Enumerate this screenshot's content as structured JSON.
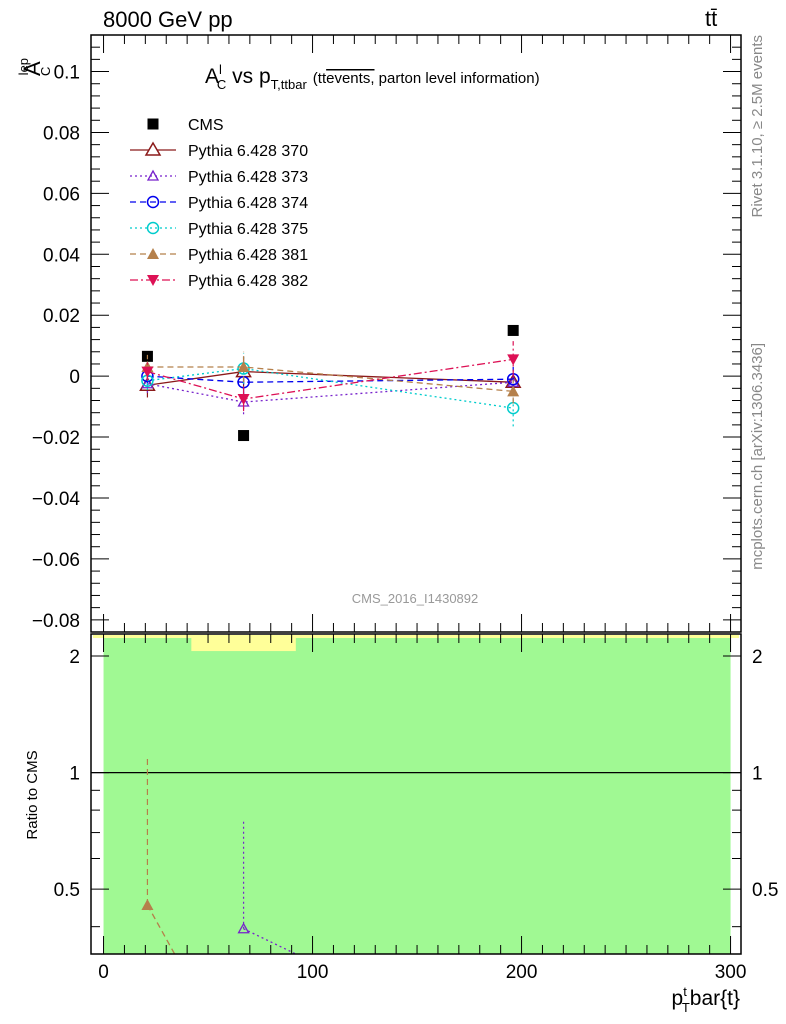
{
  "header": {
    "energy_label": "8000 GeV pp",
    "process_label": "tt̄"
  },
  "side_labels": {
    "rivet": "Rivet 3.1.10, ≥ 2.5M events",
    "mcplots": "mcplots.cern.ch [arXiv:1306.3436]"
  },
  "chart_data": [
    {
      "type": "scatter",
      "title_main": "A",
      "title_sup": "l",
      "title_sub": "C",
      "title_vs": " vs p",
      "title_vs_sub": "T,ttbar",
      "title_note_pre": "(tt",
      "title_note_over": "events,",
      "title_note_post": " parton level information)",
      "ylabel_main": "A",
      "ylabel_sup": "lep",
      "ylabel_sub": "C",
      "watermark": "CMS_2016_I1430892",
      "ylim": [
        -0.084,
        0.112
      ],
      "xlim": [
        -6,
        305
      ],
      "yticks": [
        -0.08,
        -0.06,
        -0.04,
        -0.02,
        0,
        0.02,
        0.04,
        0.06,
        0.08,
        0.1
      ],
      "ytick_labels": [
        "−0.08",
        "−0.06",
        "−0.04",
        "−0.02",
        "0",
        "0.02",
        "0.04",
        "0.06",
        "0.08",
        "0.1"
      ],
      "grid": false,
      "legend_position": "top-left",
      "x": [
        21,
        67,
        196
      ],
      "series": [
        {
          "name": "CMS",
          "color": "#000000",
          "marker": "square",
          "line": "none",
          "values": [
            0.0065,
            -0.0195,
            0.015
          ],
          "errors": [
            0,
            0,
            0
          ]
        },
        {
          "name": "Pythia 6.428 370",
          "color": "#8b1a1a",
          "marker": "triangle-open",
          "line": "solid",
          "values": [
            -0.003,
            0.0015,
            -0.002
          ],
          "errors": [
            0.004,
            0.005,
            0.003
          ]
        },
        {
          "name": "Pythia 6.428 373",
          "color": "#7722cc",
          "marker": "triangle-open-small",
          "line": "dotted",
          "values": [
            -0.0025,
            -0.0085,
            -0.002
          ],
          "errors": [
            0.003,
            0.004,
            0.003
          ]
        },
        {
          "name": "Pythia 6.428 374",
          "color": "#0000ee",
          "marker": "circle-open",
          "line": "dashed",
          "values": [
            0,
            -0.002,
            -0.001
          ],
          "errors": [
            0.003,
            0.004,
            0.004
          ]
        },
        {
          "name": "Pythia 6.428 375",
          "color": "#00cccc",
          "marker": "circle-open",
          "line": "dotted",
          "values": [
            -0.0015,
            0.0025,
            -0.0105
          ],
          "errors": [
            0.003,
            0.005,
            0.006
          ]
        },
        {
          "name": "Pythia 6.428 381",
          "color": "#b5804b",
          "marker": "triangle-filled",
          "line": "dashed",
          "values": [
            0.003,
            0.003,
            -0.005
          ],
          "errors": [
            0.004,
            0.005,
            0.004
          ]
        },
        {
          "name": "Pythia 6.428 382",
          "color": "#dd1155",
          "marker": "triangle-down-filled",
          "line": "dashdot",
          "values": [
            0.0015,
            -0.0075,
            0.0055
          ],
          "errors": [
            0.003,
            0.004,
            0.006
          ]
        }
      ]
    },
    {
      "type": "scatter",
      "ylabel": "Ratio to CMS",
      "xlabel_main": "p",
      "xlabel_sup": "t",
      "xlabel_sub": "T",
      "xlabel_rest": "bar{t}",
      "ylim": [
        0.34,
        2.28
      ],
      "xlim": [
        -6,
        305
      ],
      "yticks": [
        0.5,
        1,
        2
      ],
      "ytick_labels": [
        "0.5",
        "1",
        "2"
      ],
      "xticks": [
        0,
        100,
        200,
        300
      ],
      "xtick_labels": [
        "0",
        "100",
        "200",
        "300"
      ],
      "reference_line": 1,
      "bands": [
        {
          "color": "#a0f993",
          "x_from": 0,
          "x_to": 300,
          "y_from": 0.34,
          "y_to": 2.28
        },
        {
          "color": "#ffff99",
          "x_from": 42,
          "x_to": 92,
          "y_from": 2.06,
          "y_to": 2.28
        }
      ],
      "series": [
        {
          "name": "Pythia 6.428 381",
          "color": "#b5804b",
          "marker": "triangle-filled",
          "line": "dashed",
          "points": [
            [
              21,
              0.455
            ],
            [
              34,
              0.34
            ]
          ],
          "errors": [
            0.65,
            0
          ]
        },
        {
          "name": "Pythia 6.428 373",
          "color": "#7722cc",
          "marker": "triangle-open-small",
          "line": "dotted",
          "points": [
            [
              67,
              0.395
            ],
            [
              92,
              0.34
            ]
          ],
          "errors": [
            0.36,
            0
          ]
        }
      ]
    }
  ]
}
